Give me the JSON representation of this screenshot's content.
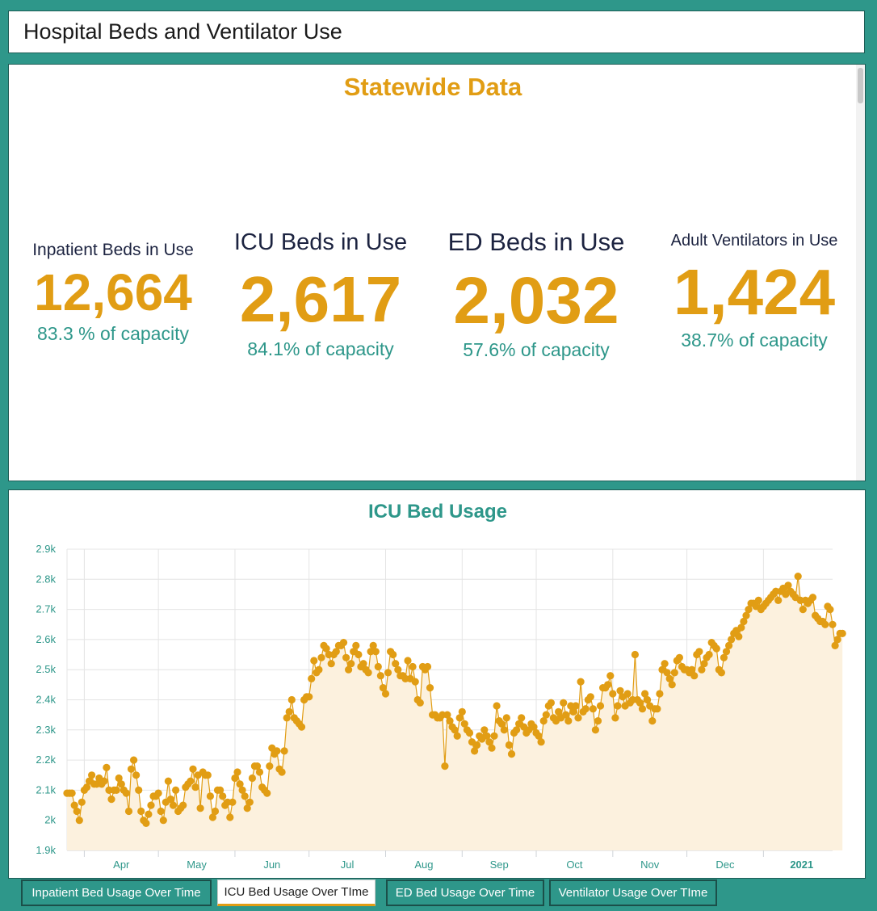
{
  "window": {
    "title": "Hospital Beds and Ventilator Use"
  },
  "statewide": {
    "heading": "Statewide Data",
    "stats": [
      {
        "label": "Inpatient Beds in Use",
        "value": "12,664",
        "capacity": "83.3 % of capacity"
      },
      {
        "label": "ICU Beds in Use",
        "value": "2,617",
        "capacity": "84.1% of capacity"
      },
      {
        "label": "ED Beds in Use",
        "value": "2,032",
        "capacity": "57.6% of capacity"
      },
      {
        "label": "Adult Ventilators in Use",
        "value": "1,424",
        "capacity": "38.7% of capacity"
      }
    ]
  },
  "chart_data": {
    "type": "area",
    "title": "ICU Bed Usage",
    "xlabel": "",
    "ylabel": "",
    "ylim": [
      1900,
      2900
    ],
    "y_ticks": [
      "1.9k",
      "2k",
      "2.1k",
      "2.2k",
      "2.3k",
      "2.4k",
      "2.5k",
      "2.6k",
      "2.7k",
      "2.8k",
      "2.9k"
    ],
    "x_ticks": [
      "Apr",
      "May",
      "Jun",
      "Jul",
      "Aug",
      "Sep",
      "Oct",
      "Nov",
      "Dec",
      "2021"
    ],
    "x_range": [
      "2020-03-25",
      "2021-01-29"
    ],
    "grid": true,
    "series": [
      {
        "start_date": "2020-03-25",
        "interval": "1 day",
        "color": "#e19d14",
        "fill_color": "#fcf1de",
        "values": [
          2090,
          2090,
          2090,
          2050,
          2030,
          2000,
          2060,
          2100,
          2110,
          2130,
          2150,
          2120,
          2120,
          2140,
          2120,
          2130,
          2175,
          2100,
          2070,
          2100,
          2100,
          2140,
          2120,
          2100,
          2090,
          2030,
          2170,
          2200,
          2150,
          2100,
          2030,
          2000,
          1990,
          2020,
          2050,
          2080,
          2080,
          2090,
          2030,
          2000,
          2060,
          2130,
          2070,
          2050,
          2100,
          2030,
          2040,
          2050,
          2110,
          2120,
          2130,
          2170,
          2110,
          2150,
          2040,
          2160,
          2150,
          2150,
          2080,
          2010,
          2030,
          2100,
          2100,
          2080,
          2050,
          2060,
          2010,
          2060,
          2140,
          2160,
          2120,
          2100,
          2080,
          2040,
          2060,
          2140,
          2180,
          2180,
          2160,
          2110,
          2100,
          2090,
          2180,
          2240,
          2220,
          2230,
          2170,
          2160,
          2230,
          2340,
          2360,
          2400,
          2340,
          2330,
          2320,
          2310,
          2400,
          2410,
          2410,
          2470,
          2530,
          2490,
          2500,
          2540,
          2580,
          2570,
          2550,
          2520,
          2550,
          2560,
          2580,
          2580,
          2590,
          2540,
          2500,
          2520,
          2560,
          2580,
          2550,
          2510,
          2520,
          2500,
          2490,
          2560,
          2580,
          2560,
          2510,
          2480,
          2440,
          2420,
          2490,
          2560,
          2550,
          2520,
          2500,
          2480,
          2480,
          2470,
          2530,
          2470,
          2510,
          2460,
          2400,
          2390,
          2510,
          2500,
          2510,
          2440,
          2350,
          2350,
          2340,
          2340,
          2350,
          2180,
          2350,
          2330,
          2310,
          2300,
          2280,
          2340,
          2360,
          2320,
          2300,
          2290,
          2260,
          2230,
          2250,
          2280,
          2270,
          2300,
          2280,
          2260,
          2240,
          2280,
          2380,
          2330,
          2320,
          2300,
          2340,
          2250,
          2220,
          2290,
          2300,
          2320,
          2340,
          2310,
          2290,
          2300,
          2320,
          2310,
          2290,
          2280,
          2260,
          2330,
          2350,
          2380,
          2390,
          2340,
          2330,
          2360,
          2340,
          2390,
          2350,
          2330,
          2380,
          2360,
          2380,
          2340,
          2460,
          2360,
          2370,
          2400,
          2410,
          2370,
          2300,
          2330,
          2380,
          2440,
          2440,
          2450,
          2480,
          2420,
          2340,
          2380,
          2430,
          2410,
          2380,
          2420,
          2390,
          2400,
          2550,
          2400,
          2390,
          2370,
          2420,
          2400,
          2380,
          2330,
          2370,
          2370,
          2420,
          2500,
          2520,
          2490,
          2470,
          2450,
          2490,
          2530,
          2540,
          2510,
          2500,
          2500,
          2490,
          2500,
          2480,
          2550,
          2560,
          2500,
          2520,
          2540,
          2550,
          2590,
          2580,
          2570,
          2500,
          2490,
          2540,
          2560,
          2580,
          2600,
          2620,
          2630,
          2610,
          2640,
          2660,
          2680,
          2700,
          2720,
          2720,
          2710,
          2730,
          2700,
          2710,
          2720,
          2730,
          2740,
          2750,
          2760,
          2730,
          2760,
          2770,
          2750,
          2780,
          2760,
          2750,
          2740,
          2810,
          2730,
          2700,
          2730,
          2720,
          2730,
          2740,
          2680,
          2670,
          2660,
          2660,
          2650,
          2710,
          2700,
          2650,
          2580,
          2600,
          2620,
          2620
        ]
      }
    ]
  },
  "tabs": [
    {
      "label": "Inpatient Bed Usage Over Time",
      "active": false
    },
    {
      "label": "ICU Bed Usage Over TIme",
      "active": true
    },
    {
      "label": "ED Bed Usage Over Time",
      "active": false
    },
    {
      "label": "Ventilator Usage Over TIme",
      "active": false
    }
  ]
}
